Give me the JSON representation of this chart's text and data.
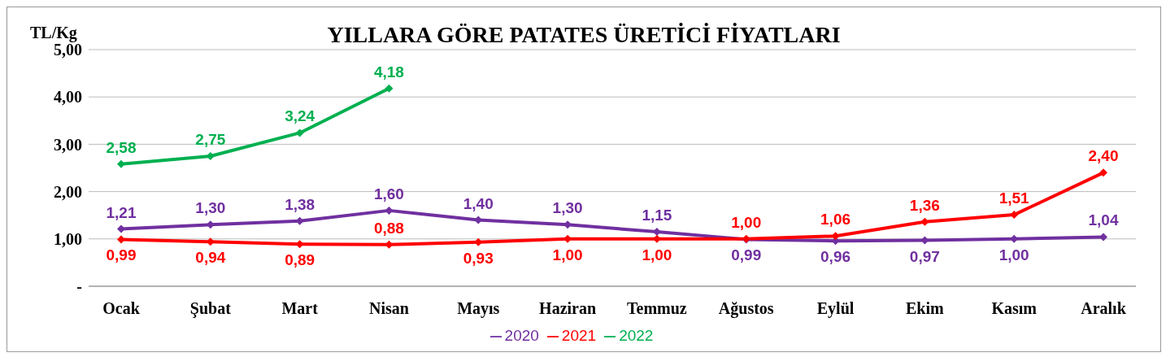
{
  "chart_data": {
    "type": "line",
    "title": "YILLARA GÖRE PATATES ÜRETİCİ FİYATLARI",
    "ylabel": "TL/Kg",
    "categories": [
      "Ocak",
      "Şubat",
      "Mart",
      "Nisan",
      "Mayıs",
      "Haziran",
      "Temmuz",
      "Ağustos",
      "Eylül",
      "Ekim",
      "Kasım",
      "Aralık"
    ],
    "series": [
      {
        "name": "2020",
        "color": "#7030a0",
        "values": [
          1.21,
          1.3,
          1.38,
          1.6,
          1.4,
          1.3,
          1.15,
          0.99,
          0.96,
          0.97,
          1.0,
          1.04
        ],
        "value_labels": [
          "1,21",
          "1,30",
          "1,38",
          "1,60",
          "1,40",
          "1,30",
          "1,15",
          "0,99",
          "0,96",
          "0,97",
          "1,00",
          "1,04"
        ]
      },
      {
        "name": "2021",
        "color": "#ff0000",
        "values": [
          0.99,
          0.94,
          0.89,
          0.88,
          0.93,
          1.0,
          1.0,
          1.0,
          1.06,
          1.36,
          1.51,
          2.4
        ],
        "value_labels": [
          "0,99",
          "0,94",
          "0,89",
          "0,88",
          "0,93",
          "1,00",
          "1,00",
          "1,00",
          "1,06",
          "1,36",
          "1,51",
          "2,40"
        ]
      },
      {
        "name": "2022",
        "color": "#00b050",
        "values": [
          2.58,
          2.75,
          3.24,
          4.18,
          null,
          null,
          null,
          null,
          null,
          null,
          null,
          null
        ],
        "value_labels": [
          "2,58",
          "2,75",
          "3,24",
          "4,18",
          null,
          null,
          null,
          null,
          null,
          null,
          null,
          null
        ]
      }
    ],
    "ylim": [
      0,
      5
    ],
    "yticks": [
      {
        "value": 0,
        "label": "-"
      },
      {
        "value": 1,
        "label": "1,00"
      },
      {
        "value": 2,
        "label": "2,00"
      },
      {
        "value": 3,
        "label": "3,00"
      },
      {
        "value": 4,
        "label": "4,00"
      },
      {
        "value": 5,
        "label": "5,00"
      }
    ],
    "grid": "y",
    "legend": "bottom",
    "marker": "diamond",
    "line_style": "solid"
  }
}
